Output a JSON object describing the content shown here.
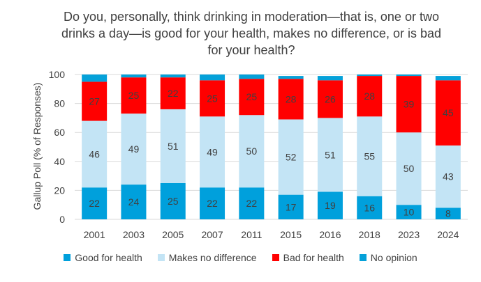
{
  "chart_data": {
    "type": "bar",
    "stacked": true,
    "title_lines": [
      "Do you, personally, think drinking in moderation—that is, one or two",
      "drinks a day—is good for your health, makes no difference, or is bad",
      "for your health?"
    ],
    "ylabel": "Gallup Poll (% of Responses)",
    "xlabel": "",
    "ylim": [
      0,
      100
    ],
    "yticks": [
      0,
      20,
      40,
      60,
      80,
      100
    ],
    "grid": true,
    "legend_position": "bottom",
    "categories": [
      "2001",
      "2003",
      "2005",
      "2007",
      "2011",
      "2015",
      "2016",
      "2018",
      "2023",
      "2024"
    ],
    "series": [
      {
        "name": "Good for health",
        "color": "#00a0dc",
        "values": [
          22,
          24,
          25,
          22,
          22,
          17,
          19,
          16,
          10,
          8
        ],
        "labels": [
          "22",
          "24",
          "25",
          "22",
          "22",
          "17",
          "19",
          "16",
          "10",
          "8"
        ]
      },
      {
        "name": "Makes no difference",
        "color": "#c3e4f5",
        "values": [
          46,
          49,
          51,
          49,
          50,
          52,
          51,
          55,
          50,
          43
        ],
        "labels": [
          "46",
          "49",
          "51",
          "49",
          "50",
          "52",
          "51",
          "55",
          "50",
          "43"
        ]
      },
      {
        "name": "Bad for health",
        "color": "#ff0000",
        "values": [
          27,
          25,
          22,
          25,
          25,
          28,
          26,
          28,
          39,
          45
        ],
        "labels": [
          "27",
          "25",
          "22",
          "25",
          "25",
          "28",
          "26",
          "28",
          "39",
          "45"
        ]
      },
      {
        "name": "No opinion",
        "color": "#05a1d9",
        "values": [
          5,
          2,
          2,
          4,
          3,
          2,
          3,
          1,
          1,
          3
        ],
        "labels": []
      }
    ]
  }
}
